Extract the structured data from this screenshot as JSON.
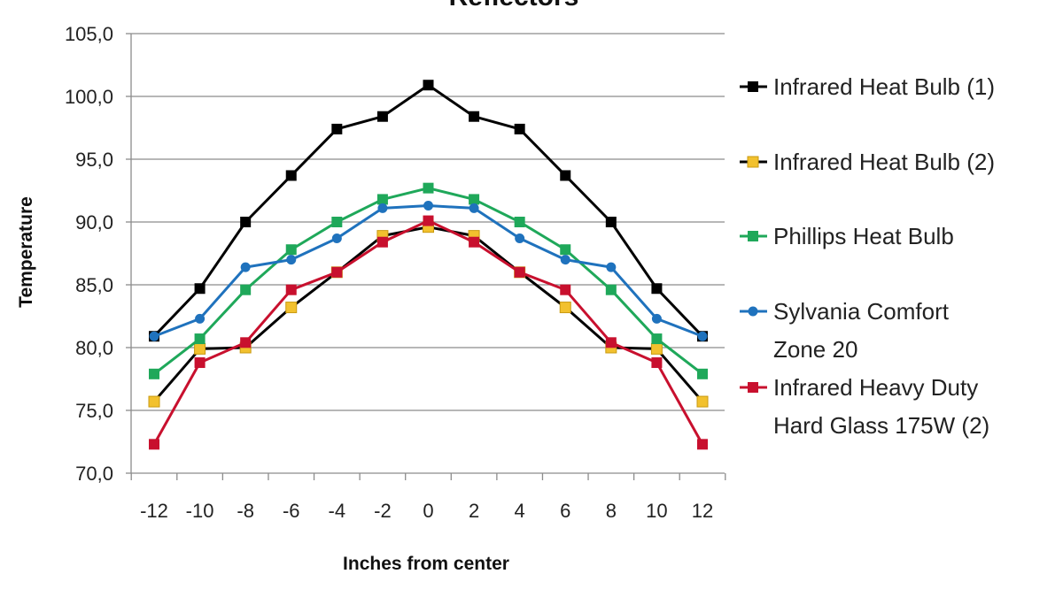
{
  "chart_data": {
    "type": "line",
    "title": "Reflectors",
    "xlabel": "Inches from center",
    "ylabel": "Temperature",
    "x": [
      -12,
      -10,
      -8,
      -6,
      -4,
      -2,
      0,
      2,
      4,
      6,
      8,
      10,
      12
    ],
    "x_tick_labels": [
      "-12",
      "-10",
      "-8",
      "-6",
      "-4",
      "-2",
      "0",
      "2",
      "4",
      "6",
      "8",
      "10",
      "12"
    ],
    "ylim": [
      70,
      105
    ],
    "y_tick_labels": [
      "70,0",
      "75,0",
      "80,0",
      "85,0",
      "90,0",
      "95,0",
      "100,0",
      "105,0"
    ],
    "y_ticks": [
      70,
      75,
      80,
      85,
      90,
      95,
      100,
      105
    ],
    "grid": true,
    "legend_position": "right",
    "series": [
      {
        "name": "Infrared Heat Bulb (1)",
        "line_color": "#000000",
        "marker_color": "#000000",
        "marker": "square",
        "values": [
          80.9,
          84.7,
          90.0,
          93.7,
          97.4,
          98.4,
          100.9,
          98.4,
          97.4,
          93.7,
          90.0,
          84.7,
          80.9
        ]
      },
      {
        "name": "Infrared Heat Bulb (2)",
        "line_color": "#000000",
        "marker_color": "#f2c12e",
        "marker": "square",
        "values": [
          75.7,
          79.9,
          80.0,
          83.2,
          86.0,
          88.9,
          89.6,
          88.9,
          86.0,
          83.2,
          80.0,
          79.9,
          75.7
        ]
      },
      {
        "name": "Phillips Heat Bulb",
        "line_color": "#1fa85a",
        "marker_color": "#1fa85a",
        "marker": "square",
        "values": [
          77.9,
          80.7,
          84.6,
          87.8,
          90.0,
          91.8,
          92.7,
          91.8,
          90.0,
          87.8,
          84.6,
          80.7,
          77.9
        ]
      },
      {
        "name": "Sylvania Comfort Zone 20",
        "legend_lines": [
          "Sylvania Comfort",
          "Zone 20"
        ],
        "line_color": "#1f72bd",
        "marker_color": "#1f72bd",
        "marker": "circle",
        "values": [
          80.9,
          82.3,
          86.4,
          87.0,
          88.7,
          91.1,
          91.3,
          91.1,
          88.7,
          87.0,
          86.4,
          82.3,
          80.9
        ]
      },
      {
        "name": "Infrared Heavy Duty Hard Glass 175W (2)",
        "legend_lines": [
          "Infrared Heavy Duty",
          "Hard Glass 175W (2)"
        ],
        "line_color": "#c8102e",
        "marker_color": "#c8102e",
        "marker": "square",
        "values": [
          72.3,
          78.8,
          80.4,
          84.6,
          86.0,
          88.4,
          90.1,
          88.4,
          86.0,
          84.6,
          80.4,
          78.8,
          72.3
        ]
      }
    ]
  }
}
